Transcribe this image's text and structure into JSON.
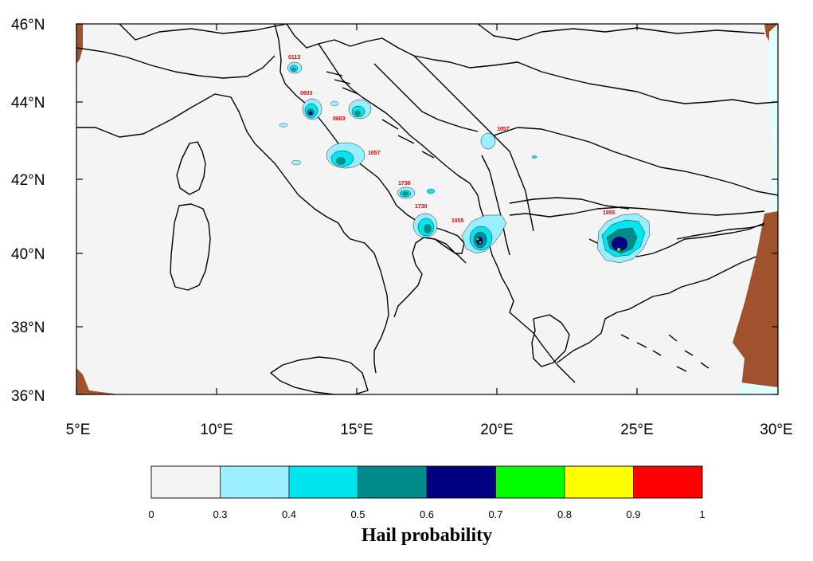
{
  "map": {
    "lat_ticks": [
      "46°N",
      "44°N",
      "42°N",
      "40°N",
      "38°N",
      "36°N"
    ],
    "lon_ticks": [
      "5°E",
      "10°E",
      "15°E",
      "20°E",
      "25°E",
      "30°E"
    ],
    "event_labels": [
      "0113",
      "0603",
      "0603",
      "1057",
      "1057",
      "1730",
      "1730",
      "1955",
      "1955"
    ]
  },
  "colorbar": {
    "title": "Hail probability",
    "ticks": [
      "0",
      "0.3",
      "0.4",
      "0.5",
      "0.6",
      "0.7",
      "0.8",
      "0.9",
      "1"
    ],
    "colors": [
      "#f4f4f4",
      "#99eeff",
      "#00e5ee",
      "#008b8b",
      "#000080",
      "#00ff00",
      "#ffff00",
      "#ff0000"
    ]
  },
  "colors": {
    "background": "#f4f4f4",
    "no_data": "#a0522d",
    "event_label": "#e00000"
  }
}
